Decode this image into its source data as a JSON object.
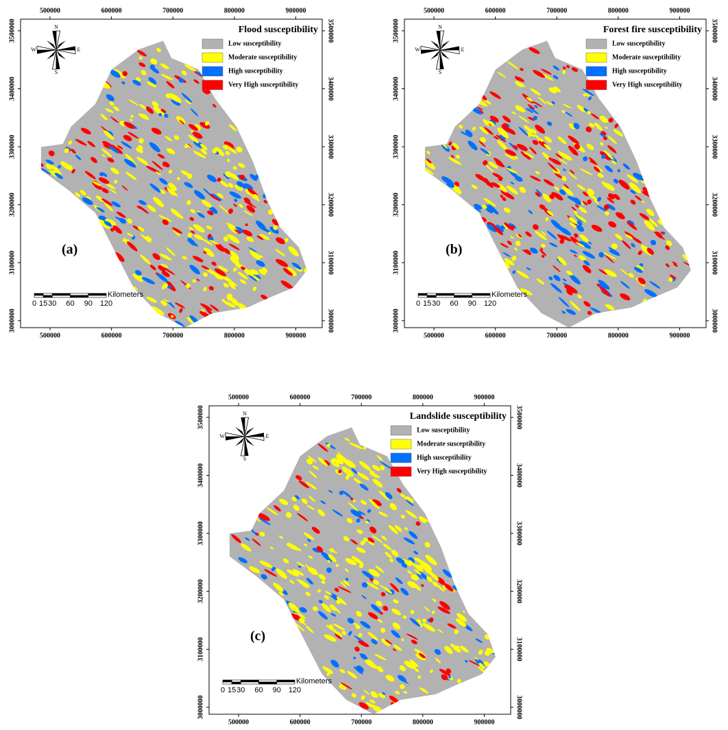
{
  "panels": [
    {
      "title": "Flood susceptibility",
      "label": "(a)"
    },
    {
      "title": "Forest fire susceptibility",
      "label": "(b)"
    },
    {
      "title": "Landslide susceptibility",
      "label": "(c)"
    }
  ],
  "legend": [
    {
      "label": "Low susceptibility",
      "color": "#b2b2b2"
    },
    {
      "label": "Moderate susceptibility",
      "color": "#ffff00"
    },
    {
      "label": "High susceptibility",
      "color": "#0070ff"
    },
    {
      "label": "Very High susceptibility",
      "color": "#ff0000"
    }
  ],
  "xlim": [
    452000,
    943000
  ],
  "ylim": [
    2988000,
    3520000
  ],
  "x_ticks": [
    500000,
    600000,
    700000,
    800000,
    900000
  ],
  "y_ticks": [
    3000000,
    3100000,
    3200000,
    3300000,
    3400000,
    3500000
  ],
  "scale_bar": {
    "ticks": [
      0,
      15,
      30,
      60,
      90,
      120
    ],
    "unit": "Kilometers"
  },
  "compass": {
    "north": "N",
    "south": "S",
    "east": "E",
    "west": "W"
  }
}
